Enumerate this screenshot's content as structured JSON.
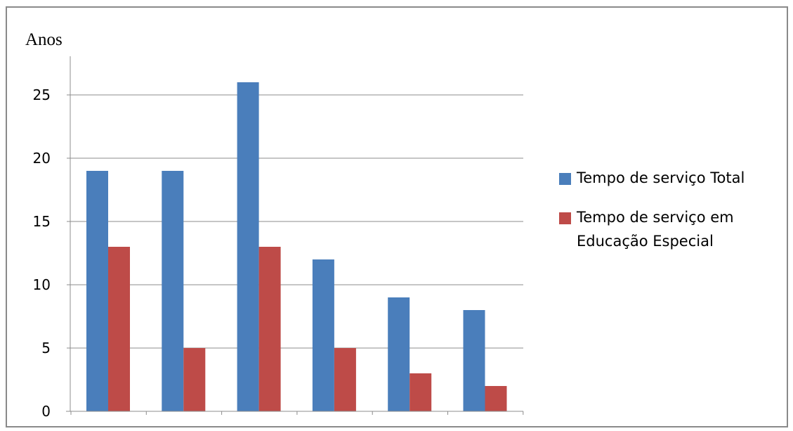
{
  "chart_data": {
    "type": "bar",
    "title": "",
    "xlabel": "",
    "ylabel": "Anos",
    "ylim": [
      0,
      25
    ],
    "yticks": [
      0,
      5,
      10,
      15,
      20,
      25
    ],
    "grid": true,
    "legend_position": "right",
    "categories": [
      "",
      "",
      "",
      "",
      "",
      ""
    ],
    "series": [
      {
        "name": "Tempo de serviço Total",
        "color": "#4a7ebb",
        "values": [
          19,
          19,
          26,
          12,
          9,
          8
        ]
      },
      {
        "name": "Tempo de serviço em Educação Especial",
        "name_lines": [
          "Tempo de serviço em",
          "Educação Especial"
        ],
        "color": "#be4b48",
        "values": [
          13,
          5,
          13,
          5,
          3,
          2
        ]
      }
    ]
  }
}
